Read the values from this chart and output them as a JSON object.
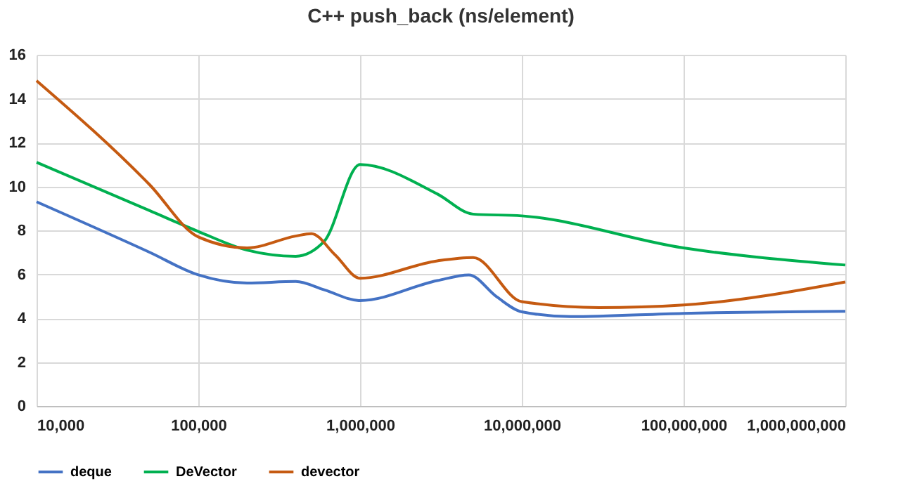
{
  "chart_data": {
    "type": "line",
    "title": "C++ push_back (ns/element)",
    "log": "x",
    "grid": true,
    "legend": "bottom",
    "line_style": "solid",
    "marker": "none",
    "xlim": [
      10000,
      1000000000
    ],
    "xticks": [
      {
        "value": 10000,
        "label": "10,000"
      },
      {
        "value": 100000,
        "label": "100,000"
      },
      {
        "value": 1000000,
        "label": "1,000,000"
      },
      {
        "value": 10000000,
        "label": "10,000,000"
      },
      {
        "value": 100000000,
        "label": "100,000,000"
      },
      {
        "value": 1000000000,
        "label": "1,000,000,000"
      }
    ],
    "ylim": [
      0,
      16
    ],
    "yticks": [
      0,
      2,
      4,
      6,
      8,
      10,
      12,
      14,
      16
    ],
    "series": [
      {
        "name": "deque",
        "color": "#4472c4",
        "x": [
          10000,
          50000,
          100000,
          200000,
          400000,
          600000,
          1000000,
          3000000,
          4700000,
          7000000,
          10000000,
          20000000,
          100000000,
          1000000000
        ],
        "values": [
          9.3,
          7.0,
          5.97,
          5.6,
          5.67,
          5.29,
          4.8,
          5.71,
          5.97,
          4.97,
          4.29,
          4.07,
          4.22,
          4.31
        ]
      },
      {
        "name": "DeVector",
        "color": "#00b050",
        "x": [
          10000,
          50000,
          100000,
          200000,
          400000,
          600000,
          1000000,
          3000000,
          5000000,
          10000000,
          100000000,
          1000000000
        ],
        "values": [
          11.1,
          8.9,
          7.95,
          7.1,
          6.82,
          7.5,
          11.0,
          9.66,
          8.74,
          8.66,
          7.2,
          6.42
        ]
      },
      {
        "name": "devector",
        "color": "#c55a11",
        "x": [
          10000,
          50000,
          100000,
          200000,
          400000,
          500000,
          700000,
          1000000,
          3000000,
          5000000,
          10000000,
          30000000,
          100000000,
          1000000000
        ],
        "values": [
          14.82,
          10.08,
          7.7,
          7.2,
          7.74,
          7.85,
          6.89,
          5.82,
          6.61,
          6.76,
          4.75,
          4.48,
          4.6,
          5.65
        ]
      }
    ]
  }
}
